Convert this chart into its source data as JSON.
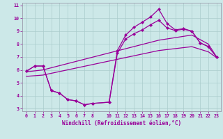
{
  "xlabel": "Windchill (Refroidissement éolien,°C)",
  "bg_color": "#cce8e8",
  "line_color": "#990099",
  "grid_color": "#aacccc",
  "spine_color": "#9999aa",
  "xlim": [
    -0.5,
    23.5
  ],
  "ylim": [
    2.8,
    11.2
  ],
  "xticks": [
    0,
    1,
    2,
    3,
    4,
    5,
    6,
    7,
    8,
    10,
    11,
    12,
    13,
    14,
    15,
    16,
    17,
    18,
    19,
    20,
    21,
    22,
    23
  ],
  "yticks": [
    3,
    4,
    5,
    6,
    7,
    8,
    9,
    10,
    11
  ],
  "line1_x": [
    0,
    1,
    2,
    3,
    4,
    5,
    6,
    7,
    8,
    10,
    11,
    12,
    13,
    14,
    15,
    16,
    17,
    18,
    19,
    20,
    21,
    22,
    23
  ],
  "line1_y": [
    5.9,
    6.3,
    6.3,
    4.4,
    4.2,
    3.7,
    3.6,
    3.3,
    3.4,
    3.5,
    7.5,
    8.7,
    9.3,
    9.7,
    10.1,
    10.7,
    9.6,
    9.1,
    9.2,
    9.0,
    8.1,
    7.8,
    7.0
  ],
  "line2_x": [
    0,
    1,
    2,
    3,
    4,
    5,
    6,
    7,
    8,
    10,
    11,
    12,
    13,
    14,
    15,
    16,
    17,
    18,
    19,
    20,
    21,
    22,
    23
  ],
  "line2_y": [
    5.9,
    6.3,
    6.3,
    4.4,
    4.2,
    3.7,
    3.6,
    3.3,
    3.4,
    3.5,
    7.3,
    8.4,
    8.8,
    9.1,
    9.5,
    9.85,
    9.25,
    9.05,
    9.15,
    9.0,
    8.1,
    7.8,
    7.0
  ],
  "line3_x": [
    0,
    2,
    16,
    20,
    22,
    23
  ],
  "line3_y": [
    5.85,
    6.0,
    8.3,
    8.7,
    8.0,
    7.0
  ],
  "line4_x": [
    0,
    2,
    16,
    20,
    22,
    23
  ],
  "line4_y": [
    5.5,
    5.6,
    7.5,
    7.8,
    7.4,
    6.95
  ],
  "markersize": 2.5,
  "linewidth": 0.9,
  "xlabel_fontsize": 5.5,
  "tick_fontsize": 4.8
}
